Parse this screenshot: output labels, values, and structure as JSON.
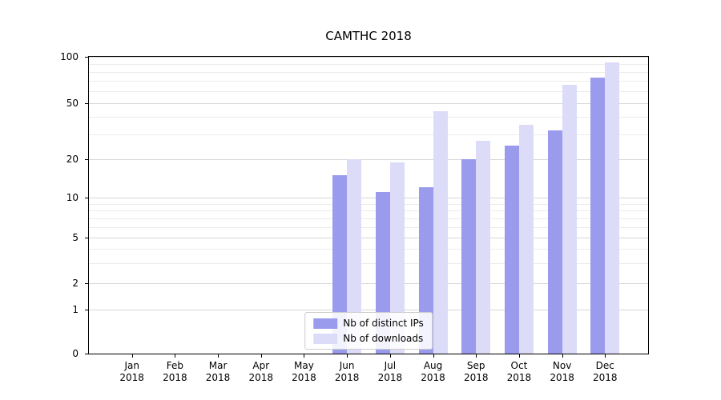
{
  "chart_data": {
    "type": "bar",
    "title": "CAMTHC 2018",
    "scale": "symlog",
    "ylim": [
      0,
      100
    ],
    "yticks": [
      0,
      1,
      2,
      5,
      10,
      20,
      50,
      100
    ],
    "minor_yticks": [
      3,
      4,
      6,
      7,
      8,
      9,
      30,
      40,
      60,
      70,
      80,
      90
    ],
    "grid": true,
    "categories": [
      "Jan",
      "Feb",
      "Mar",
      "Apr",
      "May",
      "Jun",
      "Jul",
      "Aug",
      "Sep",
      "Oct",
      "Nov",
      "Dec"
    ],
    "year": "2018",
    "series": [
      {
        "name": "Nb of distinct IPs",
        "color": "#9b9bee",
        "values": [
          0,
          0,
          0,
          0,
          0,
          15,
          11,
          12,
          20,
          25,
          32,
          73
        ]
      },
      {
        "name": "Nb of downloads",
        "color": "#dcdcf8",
        "values": [
          0,
          0,
          0,
          0,
          0,
          20,
          19,
          44,
          27,
          35,
          66,
          92
        ]
      }
    ],
    "legend_position": "lower-center",
    "colors": {
      "grid_major": "#d8d8d8",
      "grid_minor": "#ececec",
      "axis": "#000000",
      "background": "#ffffff"
    }
  }
}
